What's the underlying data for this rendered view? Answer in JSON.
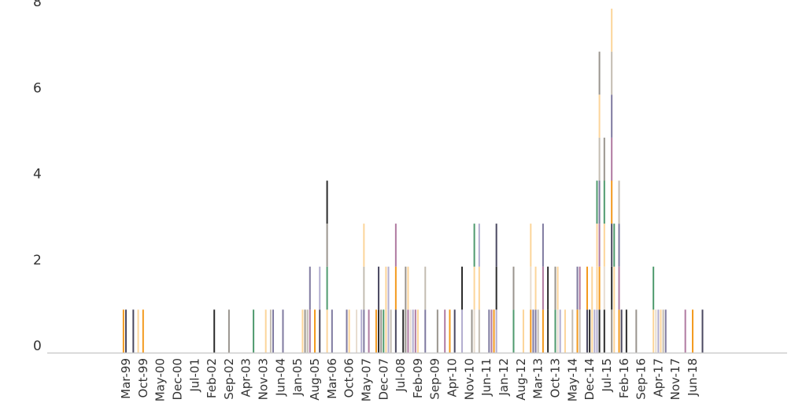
{
  "chart_data": {
    "type": "bar",
    "stacked": true,
    "title": "",
    "xlabel": "",
    "ylabel": "",
    "ylim": [
      0,
      8
    ],
    "y_ticks": [
      "0",
      "2",
      "4",
      "6",
      "8"
    ],
    "x_tick_labels": [
      "Mar-99",
      "Oct-99",
      "May-00",
      "Dec-00",
      "Jul-01",
      "Feb-02",
      "Sep-02",
      "Apr-03",
      "Nov-03",
      "Jun-04",
      "Jan-05",
      "Aug-05",
      "Mar-06",
      "Oct-06",
      "May-07",
      "Dec-07",
      "Jul-08",
      "Feb-09",
      "Sep-09",
      "Apr-10",
      "Nov-10",
      "Jun-11",
      "Jan-12",
      "Aug-12",
      "Mar-13",
      "Oct-13",
      "May-14",
      "Dec-14",
      "Jul-15",
      "Feb-16",
      "Sep-16",
      "Apr-17",
      "Nov-17",
      "Jun-18"
    ],
    "x_start": "1999-03",
    "grid": false,
    "legend": "none",
    "colors": {
      "O": "#f39a1e",
      "D": "#2b2b2b",
      "N": "#4a4860",
      "G": "#9a958e",
      "P": "#7f7aa0",
      "L": "#b3aed0",
      "K": "#b07aa1",
      "R": "#4f9a6e",
      "E": "#fcd59a",
      "B": "#e8ddd0",
      "S": "#c4bdb2"
    },
    "bars": [
      {
        "date": "1999-02",
        "stack": [
          "O"
        ]
      },
      {
        "date": "1999-03",
        "stack": [
          "N"
        ]
      },
      {
        "date": "1999-06",
        "stack": [
          "N"
        ]
      },
      {
        "date": "1999-08",
        "stack": [
          "E"
        ]
      },
      {
        "date": "1999-10",
        "stack": [
          "O"
        ]
      },
      {
        "date": "2002-03",
        "stack": [
          "D"
        ]
      },
      {
        "date": "2002-09",
        "stack": [
          "G"
        ]
      },
      {
        "date": "2003-07",
        "stack": [
          "R"
        ]
      },
      {
        "date": "2003-12",
        "stack": [
          "E"
        ]
      },
      {
        "date": "2004-02",
        "stack": [
          "S"
        ]
      },
      {
        "date": "2004-03",
        "stack": [
          "P"
        ]
      },
      {
        "date": "2004-07",
        "stack": [
          "P"
        ]
      },
      {
        "date": "2005-03",
        "stack": [
          "E"
        ]
      },
      {
        "date": "2005-04",
        "stack": [
          "G"
        ]
      },
      {
        "date": "2005-05",
        "stack": [
          "S"
        ]
      },
      {
        "date": "2005-06",
        "stack": [
          "K",
          "P"
        ]
      },
      {
        "date": "2005-08",
        "stack": [
          "O"
        ]
      },
      {
        "date": "2005-10",
        "stack": [
          "N",
          "L"
        ]
      },
      {
        "date": "2006-01",
        "stack": [
          "E",
          "R",
          "G",
          "D"
        ]
      },
      {
        "date": "2006-03",
        "stack": [
          "P"
        ]
      },
      {
        "date": "2006-09",
        "stack": [
          "P"
        ]
      },
      {
        "date": "2006-10",
        "stack": [
          "E"
        ]
      },
      {
        "date": "2007-01",
        "stack": [
          "B"
        ]
      },
      {
        "date": "2007-03",
        "stack": [
          "L"
        ]
      },
      {
        "date": "2007-04",
        "stack": [
          "P",
          "S",
          "E"
        ]
      },
      {
        "date": "2007-06",
        "stack": [
          "K"
        ]
      },
      {
        "date": "2007-09",
        "stack": [
          "O"
        ]
      },
      {
        "date": "2007-10",
        "stack": [
          "D",
          "N"
        ]
      },
      {
        "date": "2007-11",
        "stack": [
          "G"
        ]
      },
      {
        "date": "2007-12",
        "stack": [
          "R"
        ]
      },
      {
        "date": "2008-01",
        "stack": [
          "E",
          "E"
        ]
      },
      {
        "date": "2008-02",
        "stack": [
          "L",
          "L"
        ]
      },
      {
        "date": "2008-03",
        "stack": [
          "S"
        ]
      },
      {
        "date": "2008-05",
        "stack": [
          "N",
          "O",
          "K"
        ]
      },
      {
        "date": "2008-08",
        "stack": [
          "D"
        ]
      },
      {
        "date": "2008-09",
        "stack": [
          "G",
          "G"
        ]
      },
      {
        "date": "2008-10",
        "stack": [
          "K",
          "E"
        ]
      },
      {
        "date": "2008-11",
        "stack": [
          "B"
        ]
      },
      {
        "date": "2008-12",
        "stack": [
          "L"
        ]
      },
      {
        "date": "2009-01",
        "stack": [
          "K"
        ]
      },
      {
        "date": "2009-02",
        "stack": [
          "E"
        ]
      },
      {
        "date": "2009-05",
        "stack": [
          "P",
          "S"
        ]
      },
      {
        "date": "2009-10",
        "stack": [
          "G"
        ]
      },
      {
        "date": "2010-01",
        "stack": [
          "K"
        ]
      },
      {
        "date": "2010-03",
        "stack": [
          "O"
        ]
      },
      {
        "date": "2010-05",
        "stack": [
          "N"
        ]
      },
      {
        "date": "2010-08",
        "stack": [
          "L",
          "D"
        ]
      },
      {
        "date": "2010-12",
        "stack": [
          "G"
        ]
      },
      {
        "date": "2011-01",
        "stack": [
          "B",
          "E",
          "R"
        ]
      },
      {
        "date": "2011-03",
        "stack": [
          "S",
          "E",
          "L"
        ]
      },
      {
        "date": "2011-07",
        "stack": [
          "P"
        ]
      },
      {
        "date": "2011-08",
        "stack": [
          "K"
        ]
      },
      {
        "date": "2011-09",
        "stack": [
          "O"
        ]
      },
      {
        "date": "2011-10",
        "stack": [
          "L",
          "D",
          "N"
        ]
      },
      {
        "date": "2012-05",
        "stack": [
          "R",
          "G"
        ]
      },
      {
        "date": "2012-09",
        "stack": [
          "E"
        ]
      },
      {
        "date": "2012-12",
        "stack": [
          "O",
          "B",
          "E"
        ]
      },
      {
        "date": "2013-01",
        "stack": [
          "P"
        ]
      },
      {
        "date": "2013-02",
        "stack": [
          "P",
          "E"
        ]
      },
      {
        "date": "2013-03",
        "stack": [
          "S"
        ]
      },
      {
        "date": "2013-05",
        "stack": [
          "O",
          "K",
          "P"
        ]
      },
      {
        "date": "2013-07",
        "stack": [
          "D",
          "D"
        ]
      },
      {
        "date": "2013-10",
        "stack": [
          "R",
          "G"
        ]
      },
      {
        "date": "2013-11",
        "stack": [
          "B",
          "E"
        ]
      },
      {
        "date": "2013-12",
        "stack": [
          "L"
        ]
      },
      {
        "date": "2014-02",
        "stack": [
          "E"
        ]
      },
      {
        "date": "2014-05",
        "stack": [
          "S"
        ]
      },
      {
        "date": "2014-07",
        "stack": [
          "O",
          "P"
        ]
      },
      {
        "date": "2014-08",
        "stack": [
          "S",
          "K"
        ]
      },
      {
        "date": "2014-11",
        "stack": [
          "N",
          "O"
        ]
      },
      {
        "date": "2014-12",
        "stack": [
          "D"
        ]
      },
      {
        "date": "2015-01",
        "stack": [
          "E",
          "E"
        ]
      },
      {
        "date": "2015-02",
        "stack": [
          "L"
        ]
      },
      {
        "date": "2015-03",
        "stack": [
          "L",
          "E",
          "E",
          "R"
        ]
      },
      {
        "date": "2015-04",
        "stack": [
          "D",
          "O",
          "K",
          "P",
          "S",
          "E",
          "G"
        ]
      },
      {
        "date": "2015-06",
        "stack": [
          "D",
          "B",
          "E",
          "R",
          "G"
        ]
      },
      {
        "date": "2015-09",
        "stack": [
          "G",
          "D",
          "N",
          "O",
          "K",
          "P",
          "S",
          "E"
        ]
      },
      {
        "date": "2015-10",
        "stack": [
          "E",
          "E",
          "R"
        ]
      },
      {
        "date": "2015-12",
        "stack": [
          "O",
          "K",
          "P",
          "S"
        ]
      },
      {
        "date": "2016-01",
        "stack": [
          "N"
        ]
      },
      {
        "date": "2016-03",
        "stack": [
          "D"
        ]
      },
      {
        "date": "2016-07",
        "stack": [
          "G"
        ]
      },
      {
        "date": "2017-02",
        "stack": [
          "E",
          "R"
        ]
      },
      {
        "date": "2017-03",
        "stack": [
          "B"
        ]
      },
      {
        "date": "2017-04",
        "stack": [
          "L"
        ]
      },
      {
        "date": "2017-05",
        "stack": [
          "E"
        ]
      },
      {
        "date": "2017-06",
        "stack": [
          "S"
        ]
      },
      {
        "date": "2017-07",
        "stack": [
          "P"
        ]
      },
      {
        "date": "2018-03",
        "stack": [
          "K"
        ]
      },
      {
        "date": "2018-06",
        "stack": [
          "O"
        ]
      },
      {
        "date": "2018-10",
        "stack": [
          "N"
        ]
      }
    ]
  }
}
